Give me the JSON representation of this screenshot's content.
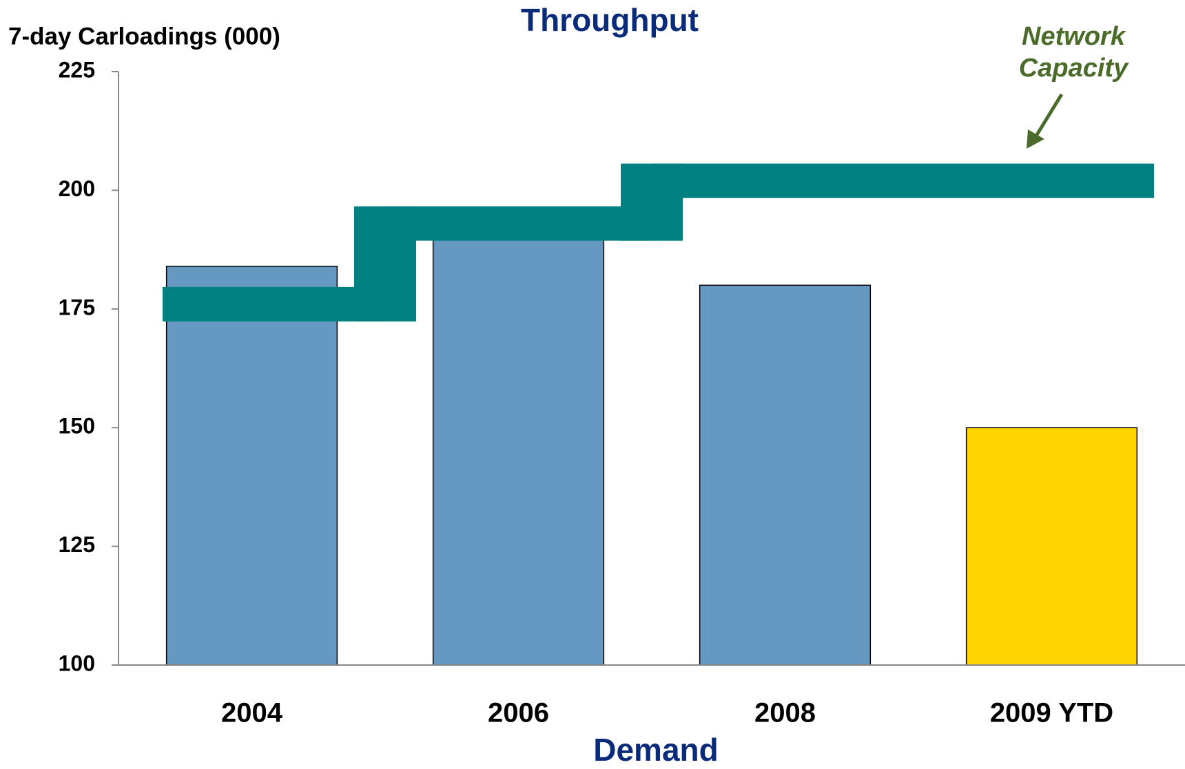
{
  "chart_data": {
    "type": "bar",
    "title": "Throughput",
    "y_label": "7-day Carloadings (000)",
    "x_label": "Demand",
    "categories": [
      "2004",
      "2006",
      "2008",
      "2009 YTD"
    ],
    "values": [
      184,
      190,
      180,
      150
    ],
    "colors": [
      "#6699c2",
      "#6699c2",
      "#6699c2",
      "#ffd400"
    ],
    "ylim": [
      100,
      225
    ],
    "yticks": [
      100,
      125,
      150,
      175,
      200,
      225
    ],
    "capacity": {
      "name": "Network Capacity",
      "color": "#008080",
      "values": [
        176,
        193,
        202,
        202
      ]
    },
    "annotation": [
      "Network",
      "Capacity"
    ],
    "annotation_color": "#4a6b2a"
  }
}
